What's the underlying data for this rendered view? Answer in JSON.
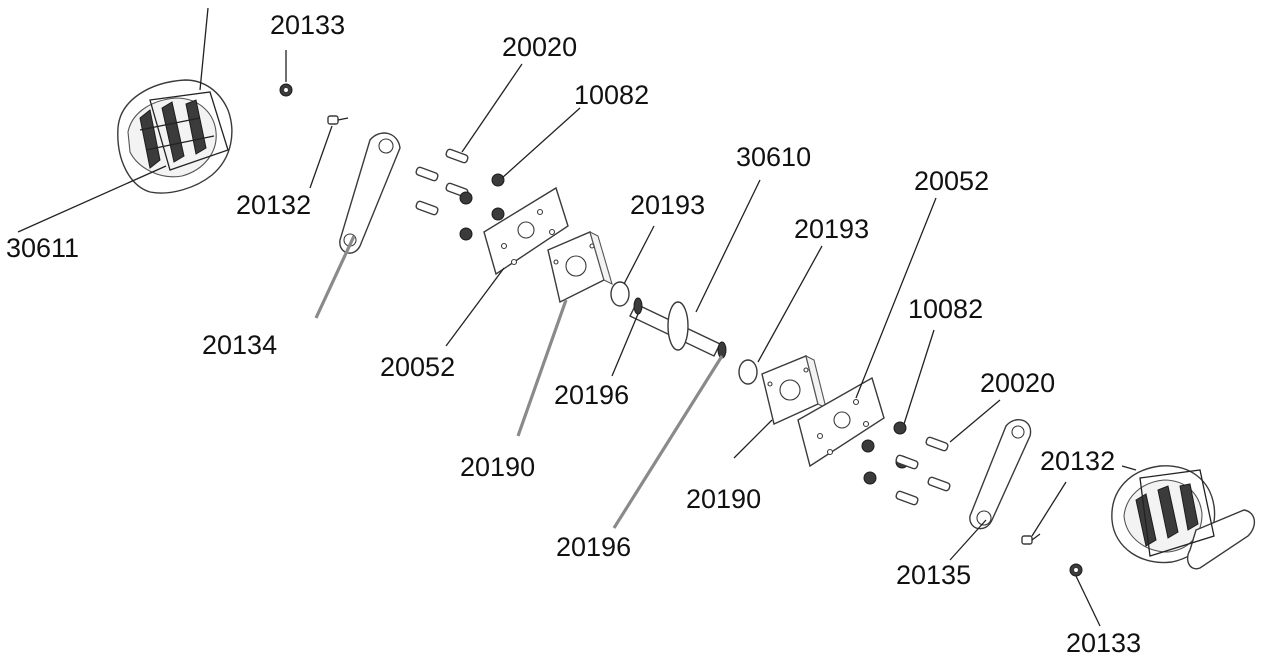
{
  "labels": [
    {
      "id": "lbl-20133-top",
      "text": "20133"
    },
    {
      "id": "lbl-20020-top",
      "text": "20020"
    },
    {
      "id": "lbl-10082-top",
      "text": "10082"
    },
    {
      "id": "lbl-30610",
      "text": "30610"
    },
    {
      "id": "lbl-20052-right",
      "text": "20052"
    },
    {
      "id": "lbl-20193-left",
      "text": "20193"
    },
    {
      "id": "lbl-20193-right",
      "text": "20193"
    },
    {
      "id": "lbl-20132-left",
      "text": "20132"
    },
    {
      "id": "lbl-30611",
      "text": "30611"
    },
    {
      "id": "lbl-20134",
      "text": "20134"
    },
    {
      "id": "lbl-20052-left",
      "text": "20052"
    },
    {
      "id": "lbl-20196-mid",
      "text": "20196"
    },
    {
      "id": "lbl-20190-left",
      "text": "20190"
    },
    {
      "id": "lbl-10082-right",
      "text": "10082"
    },
    {
      "id": "lbl-20020-right",
      "text": "20020"
    },
    {
      "id": "lbl-20132-right",
      "text": "20132"
    },
    {
      "id": "lbl-20190-right",
      "text": "20190"
    },
    {
      "id": "lbl-20135",
      "text": "20135"
    },
    {
      "id": "lbl-20196-bottom",
      "text": "20196"
    },
    {
      "id": "lbl-20133-bottom",
      "text": "20133"
    }
  ]
}
